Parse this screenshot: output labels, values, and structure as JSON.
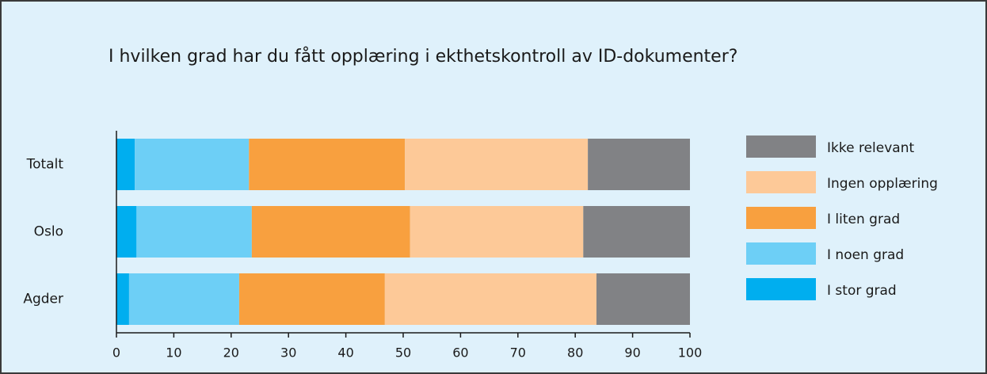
{
  "chart_data": {
    "type": "stacked_bar_horizontal",
    "title": "I hvilken grad har du fått opplæring i ekthetskontroll av ID-dokumenter?",
    "categories": [
      "Totalt",
      "Oslo",
      "Agder"
    ],
    "series": [
      {
        "name": "I stor grad",
        "color": "#00aeef",
        "values": [
          3.2,
          3.5,
          2.2
        ]
      },
      {
        "name": "I noen grad",
        "color": "#6dcff6",
        "values": [
          19.9,
          20.1,
          19.2
        ]
      },
      {
        "name": "I liten grad",
        "color": "#f8a03f",
        "values": [
          27.2,
          27.6,
          25.4
        ]
      },
      {
        "name": "Ingen opplæring",
        "color": "#fdc998",
        "values": [
          31.9,
          30.2,
          36.9
        ]
      },
      {
        "name": "Ikke relevant",
        "color": "#818285",
        "values": [
          17.8,
          18.6,
          16.3
        ]
      }
    ],
    "xlim": [
      0,
      100
    ],
    "xticks": [
      0,
      10,
      20,
      30,
      40,
      50,
      60,
      70,
      80,
      90,
      100
    ],
    "grid": false,
    "legend": "right"
  }
}
